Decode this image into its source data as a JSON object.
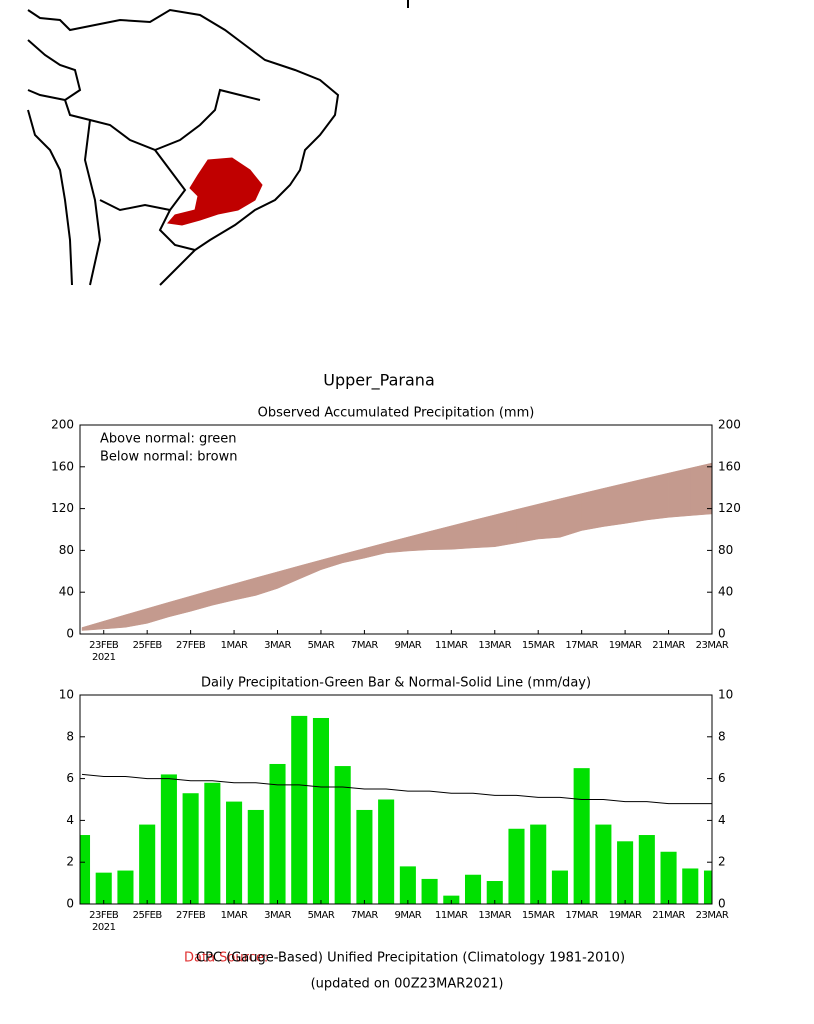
{
  "title": "Upper_Parana",
  "chart_data": [
    {
      "type": "band",
      "title": "Observed Accumulated Precipitation (mm)",
      "annotations": [
        "Above normal: green",
        "Below normal: brown"
      ],
      "categories": [
        null,
        "23FEB",
        null,
        "25FEB",
        null,
        "27FEB",
        null,
        "1MAR",
        null,
        "3MAR",
        null,
        "5MAR",
        null,
        "7MAR",
        null,
        "9MAR",
        null,
        "11MAR",
        null,
        "13MAR",
        null,
        "15MAR",
        null,
        "17MAR",
        null,
        "19MAR",
        null,
        "21MAR",
        null,
        "23MAR"
      ],
      "year_label": "2021",
      "series": [
        {
          "values": [
            3.3,
            4.8,
            6.4,
            10.2,
            16.4,
            21.7,
            27.5,
            32.4,
            36.9,
            43.6,
            52.6,
            61.5,
            68.1,
            72.6,
            77.6,
            79.4,
            80.6,
            81.0,
            82.4,
            83.5,
            87.1,
            90.9,
            92.5,
            99.0,
            102.8,
            105.8,
            109.1,
            111.6,
            113.3,
            114.9
          ]
        },
        {
          "values": [
            6.2,
            12.3,
            18.4,
            24.4,
            30.4,
            36.3,
            42.2,
            48.0,
            53.8,
            59.5,
            65.2,
            70.8,
            76.4,
            81.9,
            87.4,
            92.8,
            98.2,
            103.5,
            108.8,
            114.0,
            119.2,
            124.3,
            129.4,
            134.4,
            139.4,
            144.3,
            149.2,
            154.0,
            158.8,
            163.6
          ]
        }
      ],
      "above_color": "#00e000",
      "below_color": "#c49a8e",
      "ylim": [
        0,
        200
      ],
      "yticks": [
        0,
        40,
        80,
        120,
        160,
        200
      ]
    },
    {
      "type": "bar_line",
      "title": "Daily Precipitation-Green Bar & Normal-Solid Line (mm/day)",
      "categories": [
        null,
        "23FEB",
        null,
        "25FEB",
        null,
        "27FEB",
        null,
        "1MAR",
        null,
        "3MAR",
        null,
        "5MAR",
        null,
        "7MAR",
        null,
        "9MAR",
        null,
        "11MAR",
        null,
        "13MAR",
        null,
        "15MAR",
        null,
        "17MAR",
        null,
        "19MAR",
        null,
        "21MAR",
        null,
        "23MAR"
      ],
      "year_label": "2021",
      "series": [
        {
          "type": "bar",
          "color": "#00e000",
          "values": [
            3.3,
            1.5,
            1.6,
            3.8,
            6.2,
            5.3,
            5.8,
            4.9,
            4.5,
            6.7,
            9.0,
            8.9,
            6.6,
            4.5,
            5.0,
            1.8,
            1.2,
            0.4,
            1.4,
            1.1,
            3.6,
            3.8,
            1.6,
            6.5,
            3.8,
            3.0,
            3.3,
            2.5,
            1.7,
            1.6
          ]
        },
        {
          "type": "line",
          "color": "#000000",
          "values": [
            6.2,
            6.1,
            6.1,
            6.0,
            6.0,
            5.9,
            5.9,
            5.8,
            5.8,
            5.7,
            5.7,
            5.6,
            5.6,
            5.5,
            5.5,
            5.4,
            5.4,
            5.3,
            5.3,
            5.2,
            5.2,
            5.1,
            5.1,
            5.0,
            5.0,
            4.9,
            4.9,
            4.8,
            4.8,
            4.8
          ]
        }
      ],
      "ylim": [
        0,
        10
      ],
      "yticks": [
        0,
        2,
        4,
        6,
        8,
        10
      ]
    }
  ],
  "footer": {
    "source_label": "Data Source:",
    "source": "CPC (Gauge-Based) Unified Precipitation (Climatology 1981-2010)",
    "updated": "(updated on 00Z23MAR2021)"
  }
}
